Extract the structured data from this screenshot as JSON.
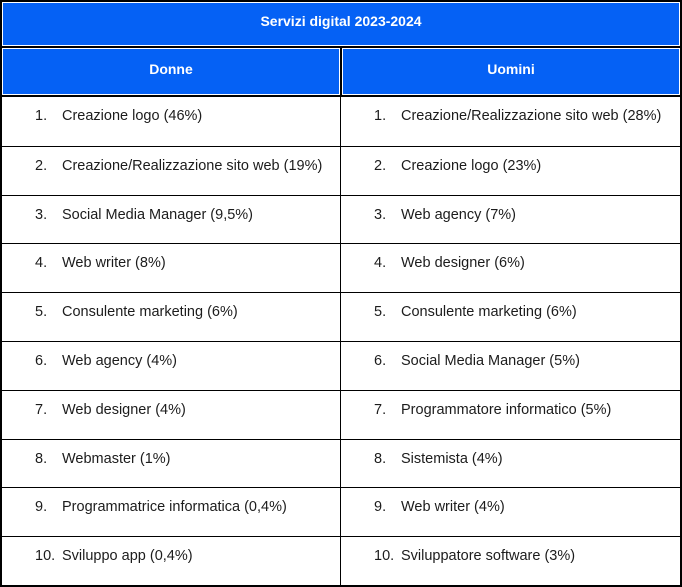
{
  "title": "Servizi digital 2023-2024",
  "columns": [
    {
      "header": "Donne",
      "items": [
        {
          "num": "1.",
          "label": "Creazione logo (46%)"
        },
        {
          "num": "2.",
          "label": "Creazione/Realizzazione sito web (19%)"
        },
        {
          "num": "3.",
          "label": "Social Media Manager (9,5%)"
        },
        {
          "num": "4.",
          "label": "Web writer (8%)"
        },
        {
          "num": "5.",
          "label": "Consulente marketing (6%)"
        },
        {
          "num": "6.",
          "label": "Web agency (4%)"
        },
        {
          "num": "7.",
          "label": "Web designer (4%)"
        },
        {
          "num": "8.",
          "label": "Webmaster (1%)"
        },
        {
          "num": "9.",
          "label": "Programmatrice informatica (0,4%)"
        },
        {
          "num": "10.",
          "label": "Sviluppo app (0,4%)"
        }
      ]
    },
    {
      "header": "Uomini",
      "items": [
        {
          "num": "1.",
          "label": "Creazione/Realizzazione sito web (28%)"
        },
        {
          "num": "2.",
          "label": "Creazione logo (23%)"
        },
        {
          "num": "3.",
          "label": "Web agency (7%)"
        },
        {
          "num": "4.",
          "label": "Web designer (6%)"
        },
        {
          "num": "5.",
          "label": "Consulente marketing (6%)"
        },
        {
          "num": "6.",
          "label": "Social Media Manager (5%)"
        },
        {
          "num": "7.",
          "label": "Programmatore informatico (5%)"
        },
        {
          "num": "8.",
          "label": "Sistemista (4%)"
        },
        {
          "num": "9.",
          "label": "Web writer (4%)"
        },
        {
          "num": "10.",
          "label": "Sviluppatore software (3%)"
        }
      ]
    }
  ],
  "colors": {
    "header_fill": "#0561F5",
    "header_text": "#FFFFFF",
    "body_text": "#1C1C1C",
    "border": "#000000",
    "background": "#FFFFFF"
  }
}
